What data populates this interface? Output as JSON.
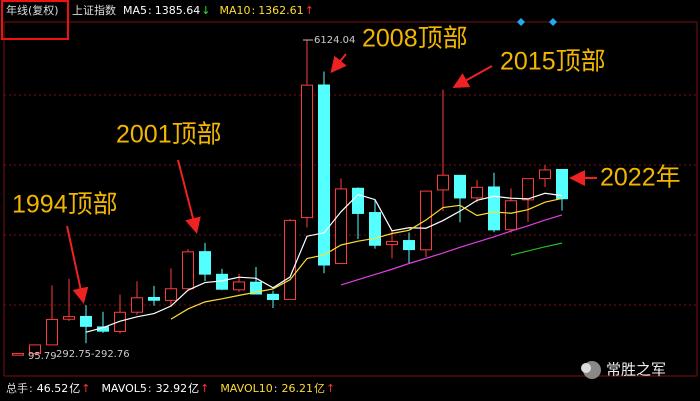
{
  "header": {
    "period": "年线(复权)",
    "index": "上证指数",
    "separator": ":"
  },
  "chart_data": {
    "type": "candlestick",
    "categories": [
      null,
      null,
      null,
      null,
      null,
      null,
      null,
      null,
      null,
      null,
      null,
      null,
      null,
      null,
      null,
      null,
      null,
      null,
      null,
      null,
      null,
      null,
      null,
      null,
      null,
      null,
      null,
      null,
      null,
      null,
      null,
      null,
      null
    ],
    "open": [
      96,
      127,
      293,
      784,
      837,
      637,
      550,
      918,
      1200,
      1144,
      1368,
      2077,
      1643,
      1347,
      1492,
      1260,
      1163,
      2728,
      5265,
      1849,
      3289,
      2825,
      2212,
      2289,
      2112,
      3258,
      3536,
      3105,
      3314,
      2497,
      3067,
      3475,
      3649
    ],
    "high": [
      127,
      292.75,
      1429,
      1558,
      1052,
      927,
      1258,
      1510,
      1422,
      1756,
      2125,
      2245,
      1748,
      1649,
      1783,
      1328,
      2698,
      6124.04,
      5522,
      3478,
      3306,
      3067,
      2478,
      2444,
      3239,
      5178,
      3538,
      3450,
      3587,
      3288,
      3474,
      3732,
      3651
    ],
    "low": [
      95.79,
      105,
      292.76,
      750,
      325,
      524,
      512,
      870,
      1043,
      1047,
      1361,
      1514,
      1339,
      1307,
      1259,
      998,
      1161,
      2541,
      1664,
      1844,
      2319,
      2134,
      1949,
      1849,
      1974,
      2850,
      2638,
      3017,
      2449,
      2440,
      2646,
      3313,
      2863
    ],
    "close": [
      127,
      292.75,
      780,
      834,
      648,
      555,
      917,
      1194,
      1147,
      1367,
      2073,
      1646,
      1358,
      1497,
      1266,
      1161,
      2675,
      5262,
      1821,
      3277,
      2808,
      2199,
      2269,
      2116,
      3235,
      3539,
      3104,
      3307,
      2494,
      3050,
      3473,
      3640,
      3089
    ],
    "up_color": "#ff3b3b",
    "down_color": "#54ffff",
    "ylim": [
      -130,
      6470
    ],
    "series": [
      {
        "name": "MA5",
        "color": "#ffffff",
        "last": 1385.64,
        "trend": "↓",
        "values": [
          null,
          null,
          null,
          null,
          536,
          622,
          747,
          830,
          892,
          1036,
          1340,
          1485,
          1518,
          1588,
          1568,
          1386,
          1591,
          2372,
          2437,
          2839,
          3169,
          3073,
          2475,
          2534,
          2525,
          2672,
          2853,
          3060,
          3136,
          3099,
          3086,
          3193,
          3149
        ]
      },
      {
        "name": "MA10",
        "color": "#ffdd33",
        "last": 1362.61,
        "trend": "↑",
        "values": [
          null,
          null,
          null,
          null,
          null,
          null,
          null,
          null,
          null,
          786,
          981,
          1116,
          1174,
          1240,
          1302,
          1363,
          1538,
          1945,
          2013,
          2204,
          2277,
          2332,
          2424,
          2485,
          2682,
          2920,
          2963,
          2768,
          2835,
          2812,
          2879,
          3023,
          3095
        ]
      },
      {
        "color": "#e040e0",
        "values": [
          null,
          null,
          null,
          null,
          null,
          null,
          null,
          null,
          null,
          null,
          null,
          null,
          null,
          null,
          null,
          null,
          null,
          null,
          null,
          1440,
          1540,
          1640,
          1740,
          1850,
          1950,
          2050,
          2160,
          2260,
          2360,
          2470,
          2570,
          2680,
          2780
        ]
      },
      {
        "color": "#22bb22",
        "values": [
          null,
          null,
          null,
          null,
          null,
          null,
          null,
          null,
          null,
          null,
          null,
          null,
          null,
          null,
          null,
          null,
          null,
          null,
          null,
          null,
          null,
          null,
          null,
          null,
          null,
          null,
          null,
          null,
          null,
          2010,
          2090,
          2170,
          2240
        ]
      }
    ],
    "annotations": [
      "1994顶部",
      "2001顶部",
      "2008顶部",
      "2015顶部",
      "2022年"
    ],
    "price_labels": [
      "6124.04",
      "95.79",
      "292.75-292.76"
    ]
  },
  "footer": {
    "separator": ":",
    "items": [
      {
        "label": "总手",
        "value": 46.52,
        "unit": "亿",
        "trend": "↑"
      },
      {
        "label": "MAVOL5",
        "value": 32.92,
        "unit": "亿",
        "trend": "↑"
      },
      {
        "label": "MAVOL10",
        "value": 26.21,
        "unit": "亿",
        "trend": "↑"
      }
    ]
  },
  "watermark": "常胜之军"
}
